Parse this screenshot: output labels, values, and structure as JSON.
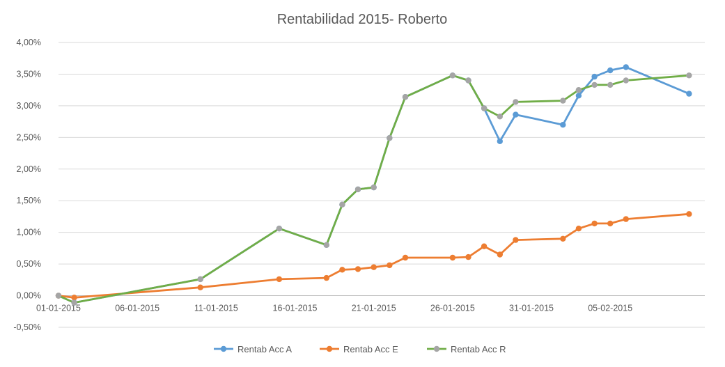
{
  "chart_data": {
    "type": "line",
    "title": "Rentabilidad 2015- Roberto",
    "xlabel": "",
    "ylabel": "",
    "x_axis": {
      "type": "date",
      "min": "2015-01-01",
      "max": "2015-02-11",
      "ticks": [
        "01-01-2015",
        "06-01-2015",
        "11-01-2015",
        "16-01-2015",
        "21-01-2015",
        "26-01-2015",
        "31-01-2015",
        "05-02-2015"
      ]
    },
    "y_axis": {
      "min": -0.005,
      "max": 0.04,
      "ticks": [
        {
          "value": -0.005,
          "label": "-0,50%"
        },
        {
          "value": 0.0,
          "label": "0,00%"
        },
        {
          "value": 0.005,
          "label": "0,50%"
        },
        {
          "value": 0.01,
          "label": "1,00%"
        },
        {
          "value": 0.015,
          "label": "1,50%"
        },
        {
          "value": 0.02,
          "label": "2,00%"
        },
        {
          "value": 0.025,
          "label": "2,50%"
        },
        {
          "value": 0.03,
          "label": "3,00%"
        },
        {
          "value": 0.035,
          "label": "3,50%"
        },
        {
          "value": 0.04,
          "label": "4,00%"
        }
      ]
    },
    "grid": true,
    "legend_position": "bottom",
    "series": [
      {
        "name": "Rentab Acc A",
        "color": "#5b9bd5",
        "points": [
          [
            "2015-01-01",
            0.0
          ],
          [
            "2015-01-02",
            -0.0011
          ],
          [
            "2015-01-10",
            0.0026
          ],
          [
            "2015-01-15",
            0.0106
          ],
          [
            "2015-01-18",
            0.008
          ],
          [
            "2015-01-19",
            0.0144
          ],
          [
            "2015-01-20",
            0.0168
          ],
          [
            "2015-01-21",
            0.0171
          ],
          [
            "2015-01-22",
            0.0249
          ],
          [
            "2015-01-23",
            0.0314
          ],
          [
            "2015-01-26",
            0.0348
          ],
          [
            "2015-01-27",
            0.034
          ],
          [
            "2015-01-28",
            0.0296
          ],
          [
            "2015-01-29",
            0.0244
          ],
          [
            "2015-01-30",
            0.0286
          ],
          [
            "2015-02-02",
            0.027
          ],
          [
            "2015-02-03",
            0.0316
          ],
          [
            "2015-02-04",
            0.0346
          ],
          [
            "2015-02-05",
            0.0356
          ],
          [
            "2015-02-06",
            0.0361
          ],
          [
            "2015-02-10",
            0.0319
          ]
        ]
      },
      {
        "name": "Rentab Acc E",
        "color": "#ed7d31",
        "points": [
          [
            "2015-01-01",
            0.0
          ],
          [
            "2015-01-02",
            -0.0003
          ],
          [
            "2015-01-10",
            0.0013
          ],
          [
            "2015-01-15",
            0.0026
          ],
          [
            "2015-01-18",
            0.0028
          ],
          [
            "2015-01-19",
            0.0041
          ],
          [
            "2015-01-20",
            0.0042
          ],
          [
            "2015-01-21",
            0.0045
          ],
          [
            "2015-01-22",
            0.0048
          ],
          [
            "2015-01-23",
            0.006
          ],
          [
            "2015-01-26",
            0.006
          ],
          [
            "2015-01-27",
            0.0061
          ],
          [
            "2015-01-28",
            0.0078
          ],
          [
            "2015-01-29",
            0.0065
          ],
          [
            "2015-01-30",
            0.0088
          ],
          [
            "2015-02-02",
            0.009
          ],
          [
            "2015-02-03",
            0.0106
          ],
          [
            "2015-02-04",
            0.0114
          ],
          [
            "2015-02-05",
            0.0114
          ],
          [
            "2015-02-06",
            0.0121
          ],
          [
            "2015-02-10",
            0.0129
          ]
        ]
      },
      {
        "name": "Rentab Acc R",
        "color": "#70ad47",
        "marker_color": "#a5a5a5",
        "points": [
          [
            "2015-01-01",
            0.0
          ],
          [
            "2015-01-02",
            -0.0011
          ],
          [
            "2015-01-10",
            0.0026
          ],
          [
            "2015-01-15",
            0.0106
          ],
          [
            "2015-01-18",
            0.008
          ],
          [
            "2015-01-19",
            0.0144
          ],
          [
            "2015-01-20",
            0.0168
          ],
          [
            "2015-01-21",
            0.0171
          ],
          [
            "2015-01-22",
            0.0249
          ],
          [
            "2015-01-23",
            0.0314
          ],
          [
            "2015-01-26",
            0.0348
          ],
          [
            "2015-01-27",
            0.034
          ],
          [
            "2015-01-28",
            0.0296
          ],
          [
            "2015-01-29",
            0.0283
          ],
          [
            "2015-01-30",
            0.0306
          ],
          [
            "2015-02-02",
            0.0308
          ],
          [
            "2015-02-03",
            0.0325
          ],
          [
            "2015-02-04",
            0.0333
          ],
          [
            "2015-02-05",
            0.0333
          ],
          [
            "2015-02-06",
            0.034
          ],
          [
            "2015-02-10",
            0.0348
          ]
        ]
      }
    ]
  }
}
